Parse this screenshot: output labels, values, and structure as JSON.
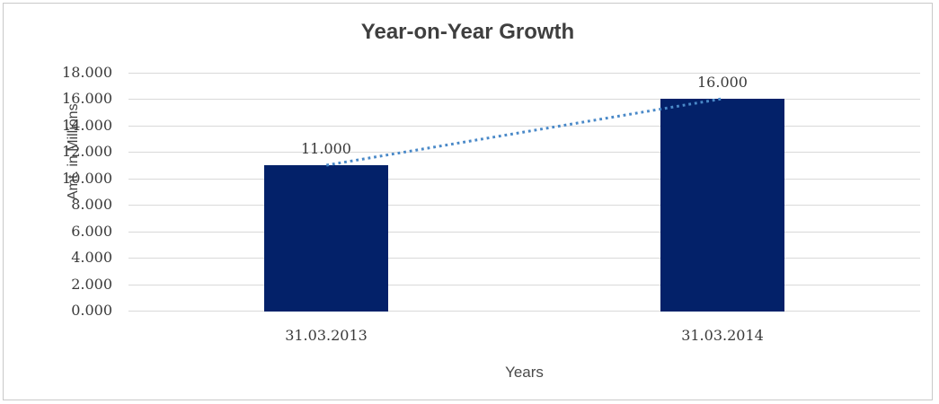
{
  "chart_data": {
    "type": "bar",
    "title": "Year-on-Year Growth",
    "categories": [
      "31.03.2013",
      "31.03.2014"
    ],
    "values": [
      11,
      16
    ],
    "data_labels": [
      "11.000",
      "16.000"
    ],
    "xlabel": "Years",
    "ylabel": "Amt. in Millions",
    "ylim": [
      0,
      18
    ],
    "ytick_step": 2,
    "yticks": [
      "18.000",
      "16.000",
      "14.000",
      "12.000",
      "10.000",
      "8.000",
      "6.000",
      "4.000",
      "2.000",
      "0.000"
    ],
    "grid": true,
    "legend": "none",
    "bar_color": "#032169",
    "trendline": {
      "type": "linear",
      "style": "dotted",
      "color": "#4A89C8"
    }
  },
  "colors": {
    "background": "#FFFFFF",
    "frame_border": "#C9C9C9",
    "gridline": "#D9D9D9",
    "title_text": "#3F3F3F",
    "axis_text": "#404040",
    "tick_text": "#3A3A3A"
  }
}
